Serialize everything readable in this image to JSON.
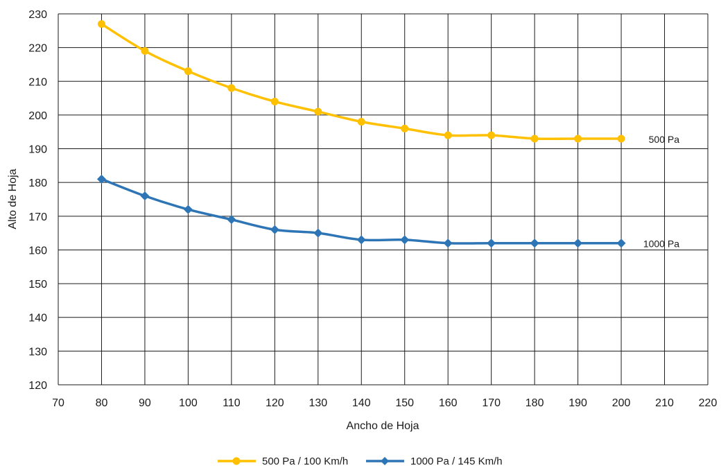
{
  "chart_data": {
    "type": "line",
    "title": "",
    "xlabel": "Ancho de Hoja",
    "ylabel": "Alto de Hoja",
    "xlim": [
      70,
      220
    ],
    "ylim": [
      120,
      230
    ],
    "xticks": [
      70,
      80,
      90,
      100,
      110,
      120,
      130,
      140,
      150,
      160,
      170,
      180,
      190,
      200,
      210,
      220
    ],
    "yticks": [
      120,
      130,
      140,
      150,
      160,
      170,
      180,
      190,
      200,
      210,
      220,
      230
    ],
    "grid": true,
    "legend_position": "bottom",
    "x": [
      80,
      90,
      100,
      110,
      120,
      130,
      140,
      150,
      160,
      170,
      180,
      190,
      200
    ],
    "series": [
      {
        "name": "500 Pa / 100 Km/h",
        "values": [
          227,
          219,
          213,
          208,
          204,
          201,
          198,
          196,
          194,
          194,
          193,
          193,
          193
        ],
        "color": "#FFC000",
        "marker": "circle",
        "end_label": "500 Pa"
      },
      {
        "name": "1000 Pa / 145 Km/h",
        "values": [
          181,
          176,
          172,
          169,
          166,
          165,
          163,
          163,
          162,
          162,
          162,
          162,
          162
        ],
        "color": "#2E75B6",
        "marker": "diamond",
        "end_label": "1000 Pa"
      }
    ]
  }
}
